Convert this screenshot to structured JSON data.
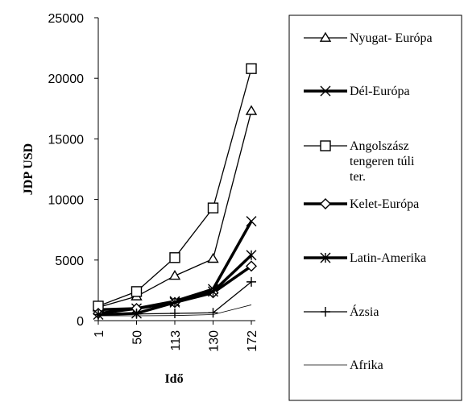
{
  "chart_data": {
    "type": "line",
    "title": "",
    "xlabel": "Idő",
    "ylabel": "JDP USD",
    "categories": [
      "1",
      "50",
      "113",
      "130",
      "172"
    ],
    "ylim": [
      0,
      25000
    ],
    "yticks": [
      0,
      5000,
      10000,
      15000,
      20000,
      25000
    ],
    "grid": false,
    "legend_position": "right",
    "series": [
      {
        "name": "Nyugat- Európa",
        "marker": "triangle",
        "line": "thin",
        "values": [
          1100,
          2000,
          3700,
          5100,
          17300
        ]
      },
      {
        "name": "Dél-Európa",
        "marker": "x",
        "line": "thick",
        "values": [
          900,
          1000,
          1600,
          2600,
          8200
        ]
      },
      {
        "name": "Angolszász tengeren túli ter.",
        "marker": "square",
        "line": "thin",
        "values": [
          1200,
          2400,
          5200,
          9300,
          20800
        ]
      },
      {
        "name": "Kelet-Európa",
        "marker": "diamond",
        "line": "thick",
        "values": [
          600,
          1000,
          1500,
          2300,
          4500
        ]
      },
      {
        "name": "Latin-Amerika",
        "marker": "asterisk",
        "line": "thick",
        "values": [
          500,
          600,
          1500,
          2400,
          5400
        ]
      },
      {
        "name": "Ázsia",
        "marker": "plus",
        "line": "thin",
        "values": [
          500,
          550,
          600,
          650,
          3200
        ]
      },
      {
        "name": "Afrika",
        "marker": "none",
        "line": "hairline",
        "values": [
          400,
          400,
          420,
          500,
          1300
        ]
      }
    ]
  }
}
